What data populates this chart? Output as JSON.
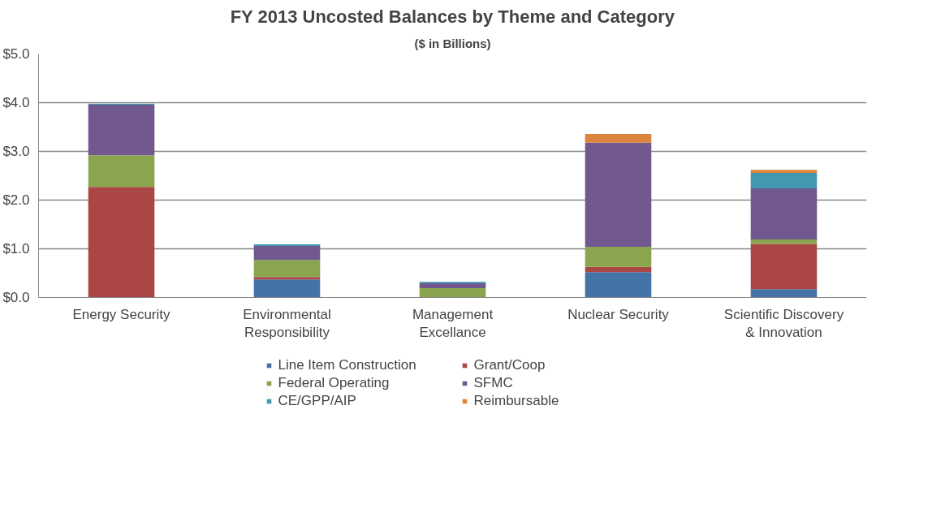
{
  "chart_data": {
    "type": "bar",
    "title": "FY 2013 Uncosted Balances by Theme and Category",
    "subtitle": "($ in Billions)",
    "categories": [
      "Energy Security",
      "Environmental\nResponsibility",
      "Management\nExcellance",
      "Nuclear Security",
      "Scientific Discovery\n& Innovation"
    ],
    "stacked": true,
    "series": [
      {
        "name": "Line Item Construction",
        "color": "#4572a7",
        "values": [
          0,
          0.37,
          0,
          0.52,
          0.17
        ]
      },
      {
        "name": "Grant/Coop",
        "color": "#aa4643",
        "values": [
          2.27,
          0.05,
          0,
          0.11,
          0.93
        ]
      },
      {
        "name": "Federal Operating",
        "color": "#89a54e",
        "values": [
          0.65,
          0.35,
          0.19,
          0.41,
          0.09
        ]
      },
      {
        "name": "SFMC",
        "color": "#71588f",
        "values": [
          1.04,
          0.29,
          0.1,
          2.14,
          1.05
        ]
      },
      {
        "name": "CE/GPP/AIP",
        "color": "#4198af",
        "values": [
          0.02,
          0.03,
          0.03,
          0,
          0.32
        ]
      },
      {
        "name": "Reimbursable",
        "color": "#db843d",
        "values": [
          0,
          0,
          0,
          0.18,
          0.06
        ]
      }
    ],
    "ylim": [
      0,
      5
    ],
    "yticks": [
      {
        "value": 0,
        "label": "$0.0"
      },
      {
        "value": 1,
        "label": "$1.0"
      },
      {
        "value": 2,
        "label": "$2.0"
      },
      {
        "value": 3,
        "label": "$3.0"
      },
      {
        "value": 4,
        "label": "$4.0"
      },
      {
        "value": 5,
        "label": "$5.0"
      }
    ],
    "grid": "y",
    "legend": "bottom"
  }
}
